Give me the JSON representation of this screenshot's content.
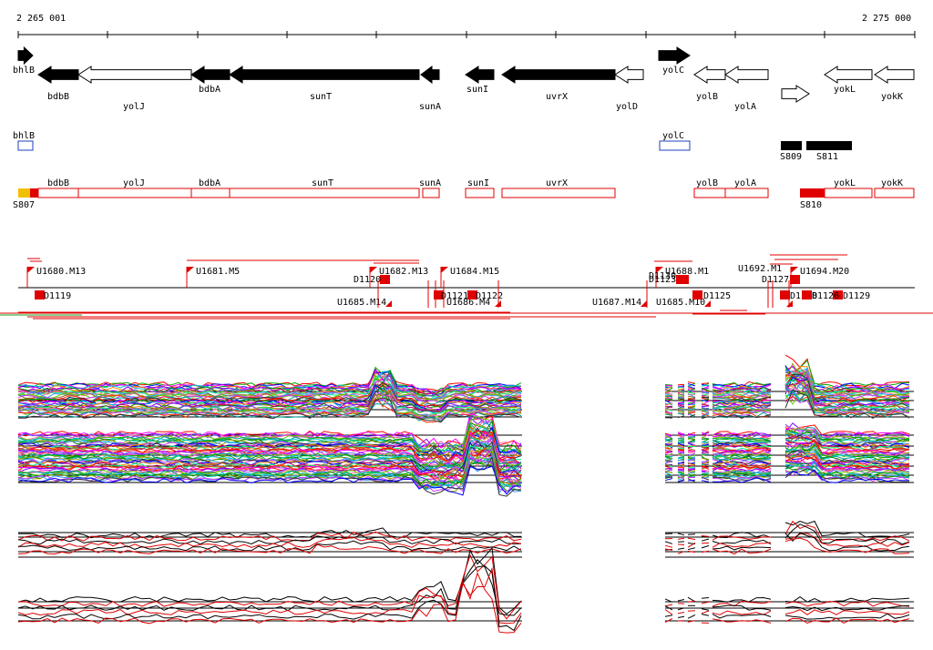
{
  "ruler": {
    "start": "2 265 001",
    "end": "2 275 000"
  },
  "genes_forward": [
    {
      "name": "bhlB",
      "filled": true
    },
    {
      "name": "yolC",
      "filled": true
    },
    {
      "name": "",
      "filled": false
    }
  ],
  "genes_reverse": [
    {
      "name": "bdbB",
      "filled": true
    },
    {
      "name": "yolJ",
      "filled": false
    },
    {
      "name": "bdbA",
      "filled": true
    },
    {
      "name": "sunT",
      "filled": true
    },
    {
      "name": "sunA",
      "filled": true
    },
    {
      "name": "sunI",
      "filled": true
    },
    {
      "name": "uvrX",
      "filled": true
    },
    {
      "name": "yolD",
      "filled": false
    },
    {
      "name": "yolB",
      "filled": false
    },
    {
      "name": "yolA",
      "filled": false
    },
    {
      "name": "yokL",
      "filled": false
    },
    {
      "name": "yokK",
      "filled": false
    }
  ],
  "boxed_features": [
    {
      "name": "bhlB",
      "color": "#1f3fbf"
    },
    {
      "name": "yolC",
      "color": "#1f3fbf"
    }
  ],
  "black_blocks": [
    "S809",
    "S811"
  ],
  "transcripts": {
    "left_label": "S807",
    "right_label": "S810",
    "genes": [
      "bdbB",
      "yolJ",
      "bdbA",
      "sunT",
      "sunA",
      "sunI",
      "uvrX",
      "yolB",
      "yolA",
      "yokL",
      "yokK"
    ]
  },
  "upshifts": [
    "U1680.M13",
    "U1681.M5",
    "U1682.M13",
    "U1684.M15",
    "U1688.M1",
    "U1687.M14",
    "U1686.M4",
    "U1685.M14",
    "U1685.M10",
    "U1694.M20",
    "U1692.M1"
  ],
  "downshifts": [
    "D1119",
    "D1120",
    "D1121",
    "D1122",
    "D1123",
    "D1124",
    "D1125",
    "D1127",
    "D1128",
    "D1129",
    "D1126",
    "D1130"
  ],
  "colors": {
    "forward": "#000000",
    "transcript": "#e00000",
    "box_blue": "#1f3fbf",
    "yellow": "#f0c000"
  }
}
